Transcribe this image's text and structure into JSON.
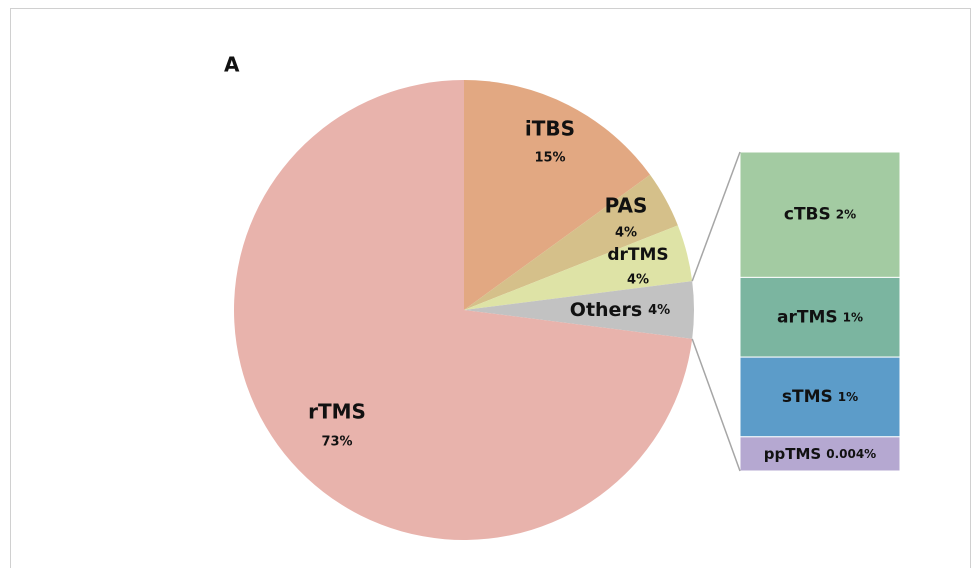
{
  "chart_data": {
    "type": "pie-of-bar",
    "title": "A",
    "categories": [
      "iTBS",
      "PAS",
      "drTMS",
      "Others",
      "rTMS"
    ],
    "values": [
      15,
      4,
      4,
      4,
      73
    ],
    "value_labels": [
      "15%",
      "4%",
      "4%",
      "4%",
      "73%"
    ],
    "colors": [
      "#e2a882",
      "#d5c08a",
      "#dee3a6",
      "#c2c2c2",
      "#e8b3ac"
    ],
    "bar": {
      "categories": [
        "cTBS",
        "arTMS",
        "sTMS",
        "ppTMS"
      ],
      "values": [
        2,
        1,
        1,
        0.004
      ],
      "value_labels": [
        "2%",
        "1%",
        "1%",
        "0.004%"
      ],
      "colors": [
        "#a3cba2",
        "#7bb5a0",
        "#5c9cc9",
        "#b5a8d1"
      ]
    }
  }
}
